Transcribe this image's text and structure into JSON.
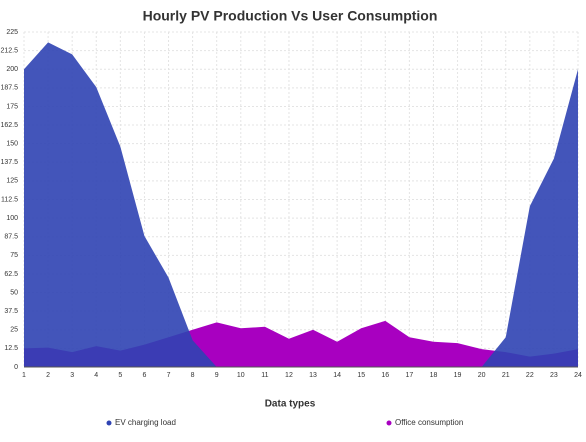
{
  "chart_data": {
    "type": "area",
    "title": "Hourly PV Production Vs User Consumption",
    "x_label": "Data types",
    "x": [
      1,
      2,
      3,
      4,
      5,
      6,
      7,
      8,
      9,
      10,
      11,
      12,
      13,
      14,
      15,
      16,
      17,
      18,
      19,
      20,
      21,
      22,
      23,
      24
    ],
    "xlim": [
      1,
      24
    ],
    "xticks": [
      1,
      2,
      3,
      4,
      5,
      6,
      7,
      8,
      9,
      10,
      11,
      12,
      13,
      14,
      15,
      16,
      17,
      18,
      19,
      20,
      21,
      22,
      23,
      24
    ],
    "ylim": [
      0,
      225
    ],
    "yticks": [
      0,
      12.5,
      25,
      37.5,
      50,
      62.5,
      75,
      87.5,
      100,
      112.5,
      125,
      137.5,
      150,
      162.5,
      175,
      187.5,
      200,
      212.5,
      225
    ],
    "grid": true,
    "legend": "bottom",
    "series": [
      {
        "name": "EV charging load",
        "color": "#2f43b3",
        "values": [
          200,
          218,
          210,
          188,
          148,
          88,
          60,
          18,
          0,
          0,
          0,
          0,
          0,
          0,
          0,
          0,
          0,
          0,
          0,
          0,
          20,
          108,
          140,
          200
        ]
      },
      {
        "name": "Office consumption",
        "color": "#a800c0",
        "values": [
          12.5,
          13,
          10,
          14,
          11,
          15,
          20,
          25,
          30,
          26,
          27,
          19,
          25,
          17,
          26,
          31,
          20,
          17,
          16,
          12,
          10,
          7,
          9,
          12
        ]
      }
    ]
  }
}
